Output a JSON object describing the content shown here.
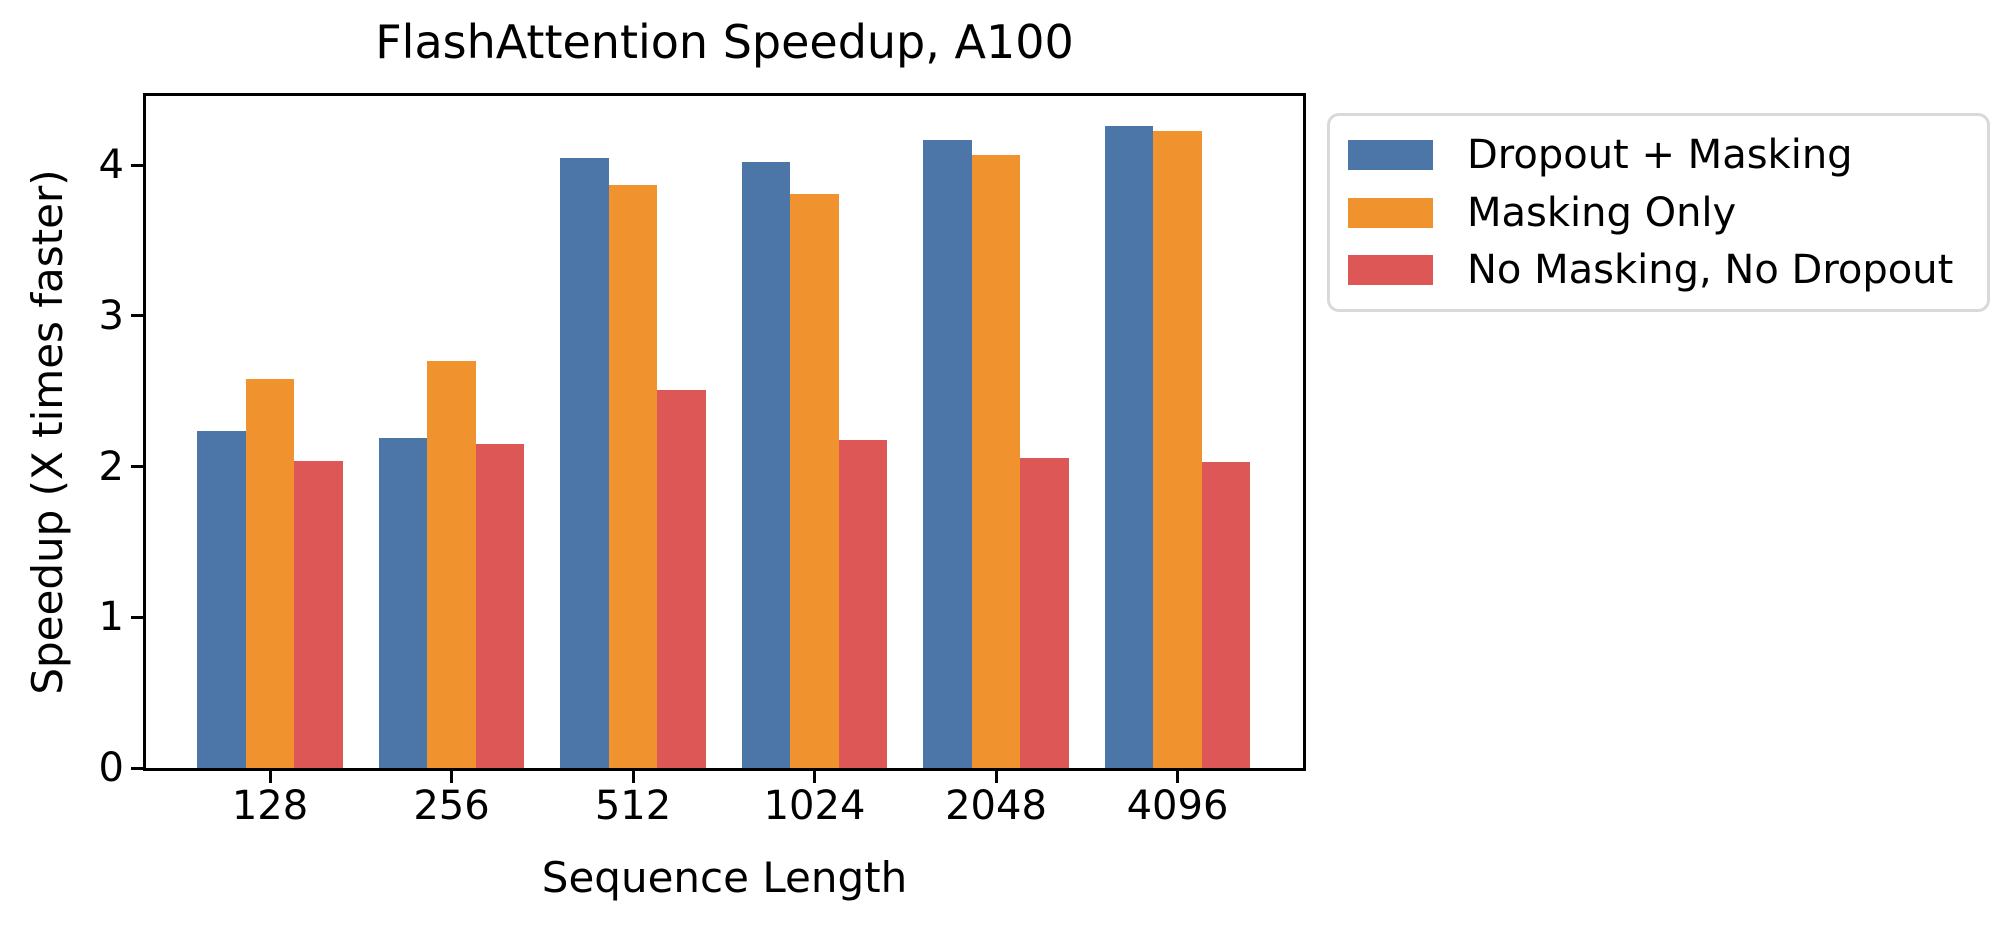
{
  "chart_data": {
    "type": "bar",
    "title": "FlashAttention Speedup, A100",
    "xlabel": "Sequence Length",
    "ylabel": "Speedup (X times faster)",
    "categories": [
      "128",
      "256",
      "512",
      "1024",
      "2048",
      "4096"
    ],
    "series": [
      {
        "name": "Dropout + Masking",
        "color": "#4D76A8",
        "values": [
          2.24,
          2.19,
          4.05,
          4.02,
          4.17,
          4.26
        ]
      },
      {
        "name": "Masking Only",
        "color": "#F0922D",
        "values": [
          2.58,
          2.7,
          3.87,
          3.81,
          4.07,
          4.23
        ]
      },
      {
        "name": "No Masking, No Dropout",
        "color": "#DD5757",
        "values": [
          2.04,
          2.15,
          2.51,
          2.18,
          2.06,
          2.03
        ]
      }
    ],
    "yticks": [
      0,
      1,
      2,
      3,
      4
    ],
    "ylim": [
      0,
      4.46
    ],
    "grid": false,
    "legend_position": "outside-upper-right",
    "axis_color": "#000000",
    "legend_border_color": "#d9d9d9"
  }
}
